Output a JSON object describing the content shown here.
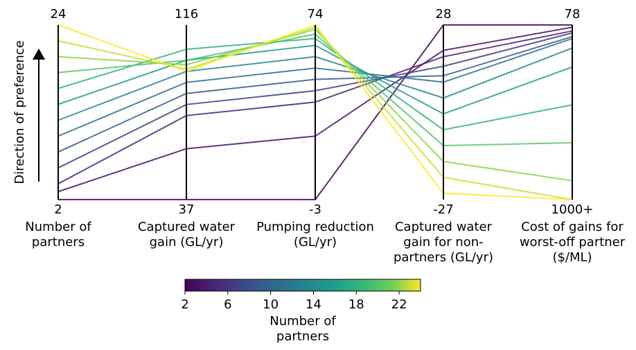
{
  "chart_data": {
    "type": "parallel-coordinates",
    "ylabel": "Direction of preference",
    "axes": [
      {
        "label_lines": [
          "Number of",
          "partners"
        ],
        "top": "24",
        "bottom": "2",
        "range": [
          2,
          24
        ]
      },
      {
        "label_lines": [
          "Captured water",
          "gain (GL/yr)"
        ],
        "top": "116",
        "bottom": "37",
        "range": [
          37,
          116
        ]
      },
      {
        "label_lines": [
          "Pumping reduction",
          "(GL/yr)"
        ],
        "top": "74",
        "bottom": "-3",
        "range": [
          -3,
          74
        ]
      },
      {
        "label_lines": [
          "Captured water",
          "gain for non-",
          "partners (GL/yr)"
        ],
        "top": "28",
        "bottom": "-27",
        "range": [
          -27,
          28
        ]
      },
      {
        "label_lines": [
          "Cost of gains for",
          "worst-off partner",
          "($/ML)"
        ],
        "top": "78",
        "bottom": "1000+",
        "range": [
          1000,
          78
        ],
        "inverted": true
      }
    ],
    "colorbar": {
      "title_lines": [
        "Number of",
        "partners"
      ],
      "ticks": [
        "2",
        "6",
        "10",
        "14",
        "18",
        "22"
      ],
      "range": [
        2,
        24
      ],
      "colormap": "viridis"
    },
    "series": [
      {
        "values": [
          2,
          37,
          -3,
          28,
          78
        ]
      },
      {
        "values": [
          3,
          60,
          25,
          20,
          90
        ]
      },
      {
        "values": [
          4,
          75,
          40,
          18,
          110
        ]
      },
      {
        "values": [
          6,
          80,
          45,
          15,
          120
        ]
      },
      {
        "values": [
          8,
          85,
          50,
          12,
          140
        ]
      },
      {
        "values": [
          10,
          90,
          55,
          10,
          150
        ]
      },
      {
        "values": [
          12,
          95,
          60,
          5,
          200
        ]
      },
      {
        "values": [
          14,
          100,
          65,
          0,
          300
        ]
      },
      {
        "values": [
          16,
          105,
          68,
          -5,
          500
        ]
      },
      {
        "values": [
          18,
          100,
          70,
          -10,
          700
        ]
      },
      {
        "values": [
          20,
          98,
          72,
          -15,
          900
        ]
      },
      {
        "values": [
          22,
          96,
          73,
          -20,
          1000
        ]
      },
      {
        "values": [
          24,
          95,
          74,
          -25,
          1000
        ]
      }
    ]
  }
}
